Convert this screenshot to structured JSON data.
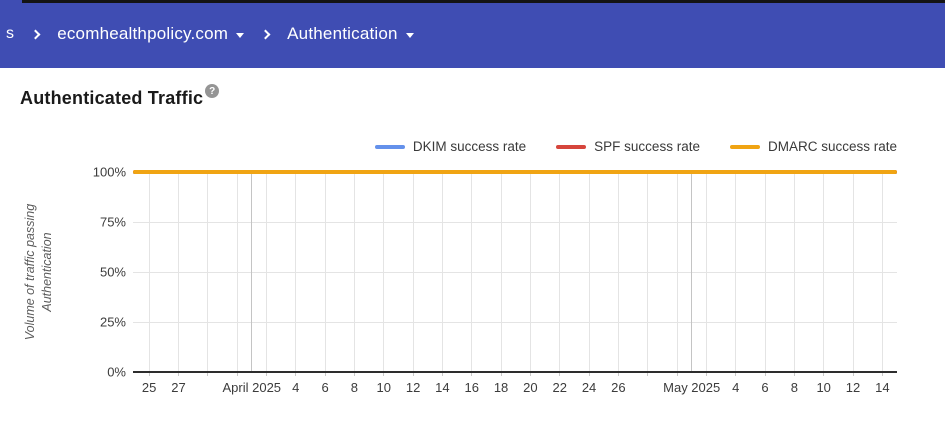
{
  "header": {
    "background": "#3f4db3",
    "breadcrumb": {
      "prefix": "s",
      "domain": "ecomhealthpolicy.com",
      "section": "Authentication"
    }
  },
  "main": {
    "title": "Authenticated Traffic",
    "help_icon": "?"
  },
  "chart_data": {
    "type": "line",
    "title": "Authenticated Traffic",
    "ylabel": "Volume of traffic passing Authentication",
    "ylabel_lines": [
      "Volume of traffic passing",
      "Authentication"
    ],
    "y_axis": {
      "min": 0,
      "max": 100,
      "ticks": [
        {
          "label": "0%",
          "value": 0
        },
        {
          "label": "25%",
          "value": 25
        },
        {
          "label": "50%",
          "value": 50
        },
        {
          "label": "75%",
          "value": 75
        },
        {
          "label": "100%",
          "value": 100
        }
      ]
    },
    "x_axis": {
      "start_date": "2025-03-25",
      "domain_days": [
        -1.1,
        51
      ],
      "gridline_every_days": 2,
      "gridline_day_range": [
        0,
        50
      ],
      "ticks": [
        {
          "label": "25",
          "day": 0
        },
        {
          "label": "27",
          "day": 2
        },
        {
          "label": "April 2025",
          "day": 7,
          "is_month": true
        },
        {
          "label": "4",
          "day": 10
        },
        {
          "label": "6",
          "day": 12
        },
        {
          "label": "8",
          "day": 14
        },
        {
          "label": "10",
          "day": 16
        },
        {
          "label": "12",
          "day": 18
        },
        {
          "label": "14",
          "day": 20
        },
        {
          "label": "16",
          "day": 22
        },
        {
          "label": "18",
          "day": 24
        },
        {
          "label": "20",
          "day": 26
        },
        {
          "label": "22",
          "day": 28
        },
        {
          "label": "24",
          "day": 30
        },
        {
          "label": "26",
          "day": 32
        },
        {
          "label": "May 2025",
          "day": 37,
          "is_month": true
        },
        {
          "label": "4",
          "day": 40
        },
        {
          "label": "6",
          "day": 42
        },
        {
          "label": "8",
          "day": 44
        },
        {
          "label": "10",
          "day": 46
        },
        {
          "label": "12",
          "day": 48
        },
        {
          "label": "14",
          "day": 50
        }
      ]
    },
    "series": [
      {
        "name": "DKIM success rate",
        "color": "#6491eb",
        "value_percent": 100
      },
      {
        "name": "SPF success rate",
        "color": "#d6453c",
        "value_percent": 100
      },
      {
        "name": "DMARC success rate",
        "color": "#f0a413",
        "value_percent": 100
      }
    ],
    "legend_position": "top-right",
    "grid": true
  }
}
